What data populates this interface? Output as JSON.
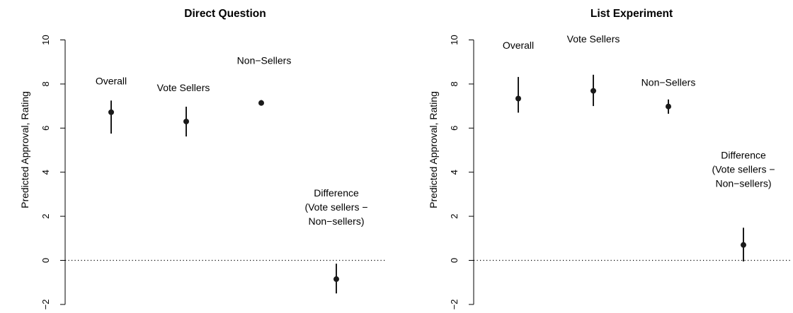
{
  "chart_data": [
    {
      "type": "scatter",
      "title": "Direct Question",
      "ylabel": "Predicted Approval, Rating",
      "ylim": [
        -2,
        10
      ],
      "yticks": [
        "−2",
        "0",
        "2",
        "4",
        "6",
        "8",
        "10"
      ],
      "reference_line": 0,
      "points": [
        {
          "label": [
            "Overall"
          ],
          "estimate": 6.72,
          "lower": 5.75,
          "upper": 7.25
        },
        {
          "label": [
            "Vote Sellers"
          ],
          "estimate": 6.3,
          "lower": 5.62,
          "upper": 6.97
        },
        {
          "label": [
            "Non−Sellers"
          ],
          "estimate": 7.14,
          "lower": 7.03,
          "upper": 7.27
        },
        {
          "label": [
            "Difference",
            "(Vote sellers −",
            "Non−sellers)"
          ],
          "estimate": -0.85,
          "lower": -1.5,
          "upper": -0.15
        }
      ]
    },
    {
      "type": "scatter",
      "title": "List Experiment",
      "ylabel": "Predicted Approval, Rating",
      "ylim": [
        -2,
        10
      ],
      "yticks": [
        "−2",
        "0",
        "2",
        "4",
        "6",
        "8",
        "10"
      ],
      "reference_line": 0,
      "points": [
        {
          "label": [
            "Overall"
          ],
          "estimate": 7.34,
          "lower": 6.7,
          "upper": 8.32
        },
        {
          "label": [
            "Vote Sellers"
          ],
          "estimate": 7.69,
          "lower": 7.0,
          "upper": 8.42
        },
        {
          "label": [
            "Non−Sellers"
          ],
          "estimate": 6.98,
          "lower": 6.65,
          "upper": 7.3
        },
        {
          "label": [
            "Difference",
            "(Vote sellers −",
            "Non−sellers)"
          ],
          "estimate": 0.7,
          "lower": -0.05,
          "upper": 1.48
        }
      ]
    }
  ]
}
